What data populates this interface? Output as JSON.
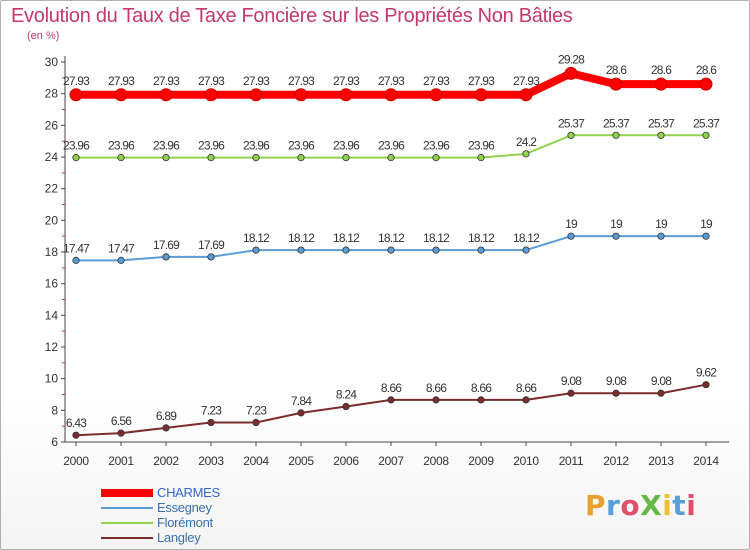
{
  "chart_data": {
    "type": "line",
    "title": "Evolution du Taux de Taxe Foncière sur les Propriétés Non Bâties",
    "unit_label": "(en %)",
    "xlabel": "",
    "ylabel": "",
    "ylim": [
      6,
      30
    ],
    "y_ticks": [
      6,
      8,
      10,
      12,
      14,
      16,
      18,
      20,
      22,
      24,
      26,
      28,
      30
    ],
    "categories": [
      "2000",
      "2001",
      "2002",
      "2003",
      "2004",
      "2005",
      "2006",
      "2007",
      "2008",
      "2009",
      "2010",
      "2011",
      "2012",
      "2013",
      "2014"
    ],
    "grid": false,
    "legend_position": "bottom-left",
    "series": [
      {
        "name": "CHARMES",
        "color": "#ff0000",
        "values": [
          27.93,
          27.93,
          27.93,
          27.93,
          27.93,
          27.93,
          27.93,
          27.93,
          27.93,
          27.93,
          27.93,
          29.28,
          28.6,
          28.6,
          28.6
        ],
        "labels": [
          "27.93",
          "27.93",
          "27.93",
          "27.93",
          "27.93",
          "27.93",
          "27.93",
          "27.93",
          "27.93",
          "27.93",
          "27.93",
          "29.28",
          "28.6",
          "28.6",
          "28.6"
        ]
      },
      {
        "name": "Essegney",
        "color": "#5b9bd5",
        "values": [
          17.47,
          17.47,
          17.69,
          17.69,
          18.12,
          18.12,
          18.12,
          18.12,
          18.12,
          18.12,
          18.12,
          19,
          19,
          19,
          19
        ],
        "labels": [
          "17.47",
          "17.47",
          "17.69",
          "17.69",
          "18.12",
          "18.12",
          "18.12",
          "18.12",
          "18.12",
          "18.12",
          "18.12",
          "19",
          "19",
          "19",
          "19"
        ]
      },
      {
        "name": "Florémont",
        "color": "#92d050",
        "values": [
          23.96,
          23.96,
          23.96,
          23.96,
          23.96,
          23.96,
          23.96,
          23.96,
          23.96,
          23.96,
          24.2,
          25.37,
          25.37,
          25.37,
          25.37
        ],
        "labels": [
          "23.96",
          "23.96",
          "23.96",
          "23.96",
          "23.96",
          "23.96",
          "23.96",
          "23.96",
          "23.96",
          "23.96",
          "24.2",
          "25.37",
          "25.37",
          "25.37",
          "25.37"
        ]
      },
      {
        "name": "Langley",
        "color": "#7b2c2c",
        "values": [
          6.43,
          6.56,
          6.89,
          7.23,
          7.23,
          7.84,
          8.24,
          8.66,
          8.66,
          8.66,
          8.66,
          9.08,
          9.08,
          9.08,
          9.62
        ],
        "labels": [
          "6.43",
          "6.56",
          "6.89",
          "7.23",
          "7.23",
          "7.84",
          "8.24",
          "8.66",
          "8.66",
          "8.66",
          "8.66",
          "9.08",
          "9.08",
          "9.08",
          "9.62"
        ]
      }
    ]
  },
  "logo": {
    "text": "ProXiti",
    "colors": [
      "#e8a030",
      "#5aa0d8",
      "#e0506a",
      "#68b848",
      "#f0c030",
      "#5aa0d8",
      "#e0506a"
    ]
  }
}
